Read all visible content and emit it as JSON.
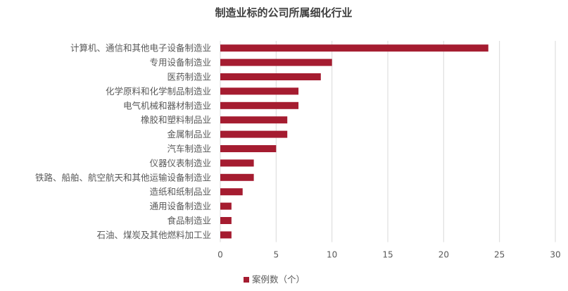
{
  "chart_data": {
    "type": "bar",
    "orientation": "horizontal",
    "title": "制造业标的公司所属细化行业",
    "categories": [
      "计算机、通信和其他电子设备制造业",
      "专用设备制造业",
      "医药制造业",
      "化学原料和化学制品制造业",
      "电气机械和器材制造业",
      "橡胶和塑料制品业",
      "金属制品业",
      "汽车制造业",
      "仪器仪表制造业",
      "铁路、船舶、航空航天和其他运输设备制造业",
      "造纸和纸制品业",
      "通用设备制造业",
      "食品制造业",
      "石油、煤炭及其他燃料加工业"
    ],
    "series": [
      {
        "name": "案例数（个）",
        "values": [
          24,
          10,
          9,
          7,
          7,
          6,
          6,
          5,
          3,
          3,
          2,
          1,
          1,
          1
        ]
      }
    ],
    "xlim": [
      0,
      30
    ],
    "xticks": [
      0,
      5,
      10,
      15,
      20,
      25,
      30
    ],
    "grid": "vertical",
    "legend_position": "bottom",
    "bar_color": "#a51c30"
  }
}
